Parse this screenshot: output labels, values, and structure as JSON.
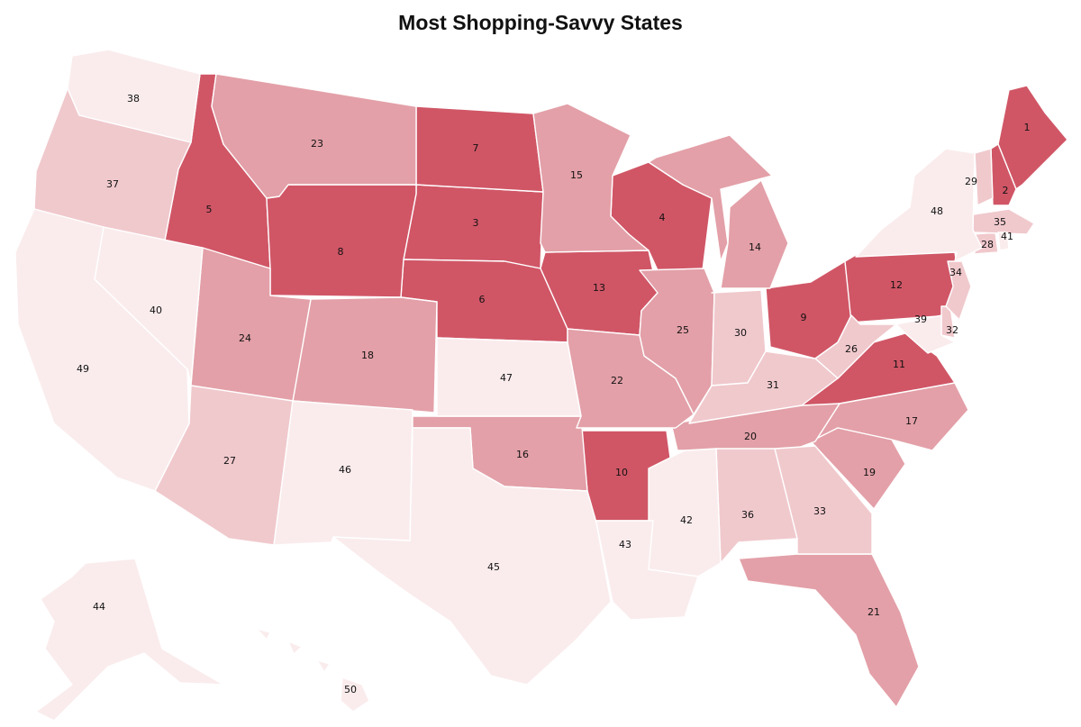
{
  "title": "Most Shopping-Savvy States",
  "colors": {
    "tier1": "#d05666",
    "tier2": "#e3a0a8",
    "tier3": "#f0c9cd",
    "tier4": "#faeced",
    "stroke": "#ffffff"
  },
  "states": [
    {
      "code": "ME",
      "rank": "1"
    },
    {
      "code": "NH",
      "rank": "2"
    },
    {
      "code": "SD",
      "rank": "3"
    },
    {
      "code": "WI",
      "rank": "4"
    },
    {
      "code": "ID",
      "rank": "5"
    },
    {
      "code": "NE",
      "rank": "6"
    },
    {
      "code": "ND",
      "rank": "7"
    },
    {
      "code": "WY",
      "rank": "8"
    },
    {
      "code": "OH",
      "rank": "9"
    },
    {
      "code": "AR",
      "rank": "10"
    },
    {
      "code": "VA",
      "rank": "11"
    },
    {
      "code": "PA",
      "rank": "12"
    },
    {
      "code": "IA",
      "rank": "13"
    },
    {
      "code": "MI",
      "rank": "14"
    },
    {
      "code": "MN",
      "rank": "15"
    },
    {
      "code": "OK",
      "rank": "16"
    },
    {
      "code": "NC",
      "rank": "17"
    },
    {
      "code": "CO",
      "rank": "18"
    },
    {
      "code": "SC",
      "rank": "19"
    },
    {
      "code": "TN",
      "rank": "20"
    },
    {
      "code": "FL",
      "rank": "21"
    },
    {
      "code": "MO",
      "rank": "22"
    },
    {
      "code": "MT",
      "rank": "23"
    },
    {
      "code": "UT",
      "rank": "24"
    },
    {
      "code": "IL",
      "rank": "25"
    },
    {
      "code": "WV",
      "rank": "26"
    },
    {
      "code": "AZ",
      "rank": "27"
    },
    {
      "code": "CT",
      "rank": "28"
    },
    {
      "code": "VT",
      "rank": "29"
    },
    {
      "code": "IN",
      "rank": "30"
    },
    {
      "code": "KY",
      "rank": "31"
    },
    {
      "code": "DE",
      "rank": "32"
    },
    {
      "code": "GA",
      "rank": "33"
    },
    {
      "code": "NJ",
      "rank": "34"
    },
    {
      "code": "MA",
      "rank": "35"
    },
    {
      "code": "AL",
      "rank": "36"
    },
    {
      "code": "OR",
      "rank": "37"
    },
    {
      "code": "WA",
      "rank": "38"
    },
    {
      "code": "MD",
      "rank": "39"
    },
    {
      "code": "NV",
      "rank": "40"
    },
    {
      "code": "RI",
      "rank": "41"
    },
    {
      "code": "MS",
      "rank": "42"
    },
    {
      "code": "LA",
      "rank": "43"
    },
    {
      "code": "AK",
      "rank": "44"
    },
    {
      "code": "TX",
      "rank": "45"
    },
    {
      "code": "NM",
      "rank": "46"
    },
    {
      "code": "KS",
      "rank": "47"
    },
    {
      "code": "NY",
      "rank": "48"
    },
    {
      "code": "CA",
      "rank": "49"
    },
    {
      "code": "HI",
      "rank": "50"
    }
  ]
}
